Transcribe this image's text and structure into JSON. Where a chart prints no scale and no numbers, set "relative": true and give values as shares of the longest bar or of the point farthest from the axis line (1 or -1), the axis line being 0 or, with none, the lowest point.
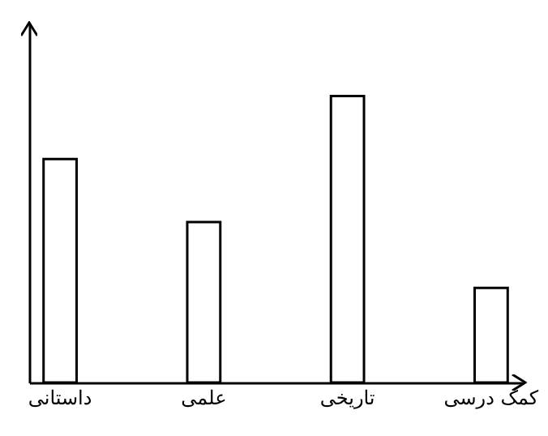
{
  "chart_data": {
    "type": "bar",
    "relative": true,
    "categories": [
      "داستانی",
      "علمی",
      "تاریخی",
      "کمک درسی"
    ],
    "values": [
      0.78,
      0.56,
      1,
      0.33
    ],
    "color": "#ffffff",
    "grid": false
  }
}
